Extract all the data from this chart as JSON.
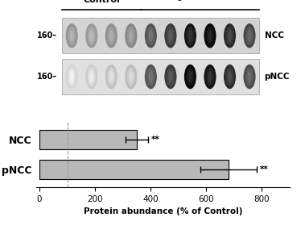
{
  "categories": [
    "NCC",
    "pNCC"
  ],
  "values": [
    350,
    680
  ],
  "errors": [
    40,
    100
  ],
  "bar_color": "#b8b8b8",
  "bar_edgecolor": "#000000",
  "xlim": [
    -10,
    900
  ],
  "xticks": [
    0,
    200,
    400,
    600,
    800
  ],
  "xlabel": "Protein abundance (% of Control)",
  "dashed_line_x": 100,
  "significance": "**",
  "background_color": "#ffffff",
  "blot_bg_color": "#d8d8d8",
  "blot_bg_color2": "#e8e8e8",
  "n_ctrl": 4,
  "n_tg": 6,
  "ctrl_ncc_intensity": [
    0.3,
    0.28,
    0.32,
    0.35
  ],
  "ctrl_pncc_intensity": [
    0.05,
    0.08,
    0.12,
    0.14
  ],
  "tg_ncc_intensity": [
    0.55,
    0.65,
    0.8,
    0.85,
    0.72,
    0.6
  ],
  "tg_pncc_intensity": [
    0.55,
    0.65,
    0.85,
    0.8,
    0.7,
    0.58
  ]
}
